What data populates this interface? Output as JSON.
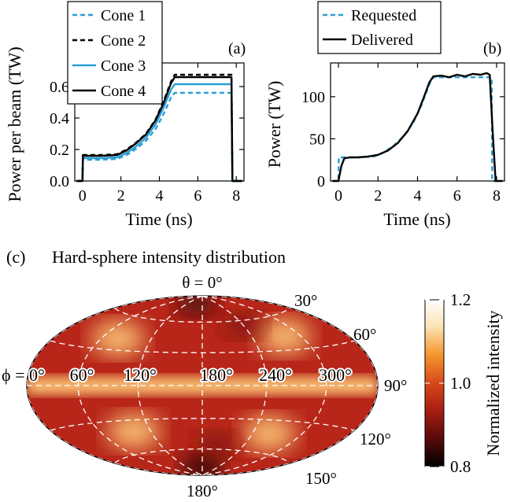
{
  "chart_data": [
    {
      "type": "line",
      "panel_label": "(a)",
      "xlabel": "Time (ns)",
      "ylabel": "Power per beam (TW)",
      "xlim": [
        -0.4,
        8.4
      ],
      "ylim": [
        0,
        0.75
      ],
      "xticks": [
        0,
        2,
        4,
        6,
        8
      ],
      "yticks": [
        0.0,
        0.2,
        0.4,
        0.6
      ],
      "ytick_labels": [
        "0.0",
        "0.2",
        "0.4",
        "0.6"
      ],
      "legend_position": "top-left",
      "series": [
        {
          "name": "Cone 1",
          "color": "#2a9fd6",
          "dash": true,
          "x": [
            -0.3,
            0.0,
            0.02,
            1.0,
            1.8,
            2.3,
            2.8,
            3.3,
            3.8,
            4.2,
            4.6,
            4.8,
            7.75,
            7.8,
            8.3
          ],
          "y": [
            0,
            0,
            0.135,
            0.135,
            0.14,
            0.165,
            0.205,
            0.255,
            0.33,
            0.42,
            0.53,
            0.56,
            0.56,
            0,
            0
          ]
        },
        {
          "name": "Cone 2",
          "color": "#000000",
          "dash": true,
          "x": [
            -0.3,
            0.0,
            0.02,
            1.0,
            1.8,
            2.3,
            2.8,
            3.3,
            3.8,
            4.2,
            4.6,
            4.8,
            7.75,
            7.8,
            8.3
          ],
          "y": [
            0,
            0,
            0.165,
            0.165,
            0.17,
            0.2,
            0.245,
            0.3,
            0.39,
            0.5,
            0.63,
            0.675,
            0.675,
            0,
            0
          ]
        },
        {
          "name": "Cone 3",
          "color": "#2a9fd6",
          "dash": false,
          "x": [
            -0.3,
            0.0,
            0.02,
            1.0,
            1.8,
            2.3,
            2.8,
            3.3,
            3.8,
            4.2,
            4.6,
            4.8,
            7.75,
            7.8,
            8.3
          ],
          "y": [
            0,
            0,
            0.145,
            0.145,
            0.15,
            0.178,
            0.22,
            0.275,
            0.36,
            0.46,
            0.58,
            0.615,
            0.615,
            0,
            0
          ]
        },
        {
          "name": "Cone 4",
          "color": "#000000",
          "dash": false,
          "x": [
            -0.3,
            0.0,
            0.02,
            1.0,
            1.8,
            2.3,
            2.8,
            3.3,
            3.8,
            4.2,
            4.6,
            4.8,
            7.75,
            7.8,
            8.3
          ],
          "y": [
            0,
            0,
            0.16,
            0.16,
            0.165,
            0.195,
            0.24,
            0.295,
            0.385,
            0.49,
            0.62,
            0.66,
            0.66,
            0,
            0
          ]
        }
      ]
    },
    {
      "type": "line",
      "panel_label": "(b)",
      "xlabel": "Time (ns)",
      "ylabel": "Power (TW)",
      "xlim": [
        -0.4,
        8.4
      ],
      "ylim": [
        0,
        140
      ],
      "xticks": [
        0,
        2,
        4,
        6,
        8
      ],
      "yticks": [
        0,
        50,
        100
      ],
      "ytick_labels": [
        "0",
        "50",
        "100"
      ],
      "legend_position": "top-left",
      "series": [
        {
          "name": "Requested",
          "color": "#2a9fd6",
          "dash": true,
          "x": [
            -0.3,
            0.0,
            0.02,
            1.0,
            1.8,
            2.3,
            2.8,
            3.3,
            3.8,
            4.2,
            4.6,
            4.8,
            7.75,
            7.78,
            8.3
          ],
          "y": [
            0,
            0,
            28,
            28,
            29,
            34,
            42,
            53,
            70,
            90,
            115,
            123,
            123,
            0,
            0
          ]
        },
        {
          "name": "Delivered",
          "color": "#000000",
          "dash": false,
          "x": [
            -0.3,
            0.0,
            0.15,
            0.3,
            0.6,
            1.0,
            1.5,
            2.0,
            2.5,
            3.0,
            3.5,
            4.0,
            4.3,
            4.6,
            4.8,
            5.2,
            5.6,
            6.0,
            6.4,
            6.8,
            7.2,
            7.5,
            7.65,
            7.8,
            7.95,
            8.3
          ],
          "y": [
            0,
            0,
            18,
            27,
            28,
            28,
            29,
            31,
            36,
            45,
            59,
            80,
            98,
            117,
            124,
            125,
            123,
            126,
            124,
            127,
            126,
            128,
            126,
            60,
            0,
            0
          ]
        }
      ]
    },
    {
      "type": "heatmap",
      "panel_label": "(c)",
      "title": "Hard-sphere intensity distribution",
      "projection": "hammer-aitoff",
      "colorbar_label": "Normalized intensity",
      "colorbar_range": [
        0.8,
        1.2
      ],
      "colorbar_ticks": [
        0.8,
        1.0,
        1.2
      ],
      "colorbar_tick_labels": [
        "0.8",
        "1.0",
        "1.2"
      ],
      "colormap": [
        "#000000",
        "#5a0a0a",
        "#a81e12",
        "#d8481a",
        "#f5962c",
        "#fbe3b6",
        "#ffffff"
      ],
      "theta_labels": [
        "θ = 0°",
        "30°",
        "60°",
        "90°",
        "120°",
        "150°",
        "180°"
      ],
      "theta_values": [
        0,
        30,
        60,
        90,
        120,
        150,
        180
      ],
      "phi_labels": [
        "ϕ = 0°",
        "60°",
        "120°",
        "180°",
        "240°",
        "300°"
      ],
      "phi_values": [
        0,
        60,
        120,
        180,
        240,
        300
      ],
      "features": [
        {
          "kind": "equatorial-band",
          "theta": 90,
          "value": 1.1
        },
        {
          "kind": "hot-spot",
          "theta": 50,
          "phi": 80,
          "value": 1.1
        },
        {
          "kind": "hot-spot",
          "theta": 48,
          "phi": 280,
          "value": 1.1
        },
        {
          "kind": "hot-spot",
          "theta": 130,
          "phi": 100,
          "value": 1.1
        },
        {
          "kind": "hot-spot",
          "theta": 132,
          "phi": 260,
          "value": 1.1
        },
        {
          "kind": "dark-spot",
          "theta": 10,
          "phi": 155,
          "value": 0.85
        },
        {
          "kind": "dark-spot",
          "theta": 170,
          "phi": 180,
          "value": 0.82
        },
        {
          "kind": "dark-spot",
          "theta": 35,
          "phi": 240,
          "value": 0.9
        },
        {
          "kind": "dark-spot",
          "theta": 145,
          "phi": 200,
          "value": 0.9
        }
      ]
    }
  ]
}
